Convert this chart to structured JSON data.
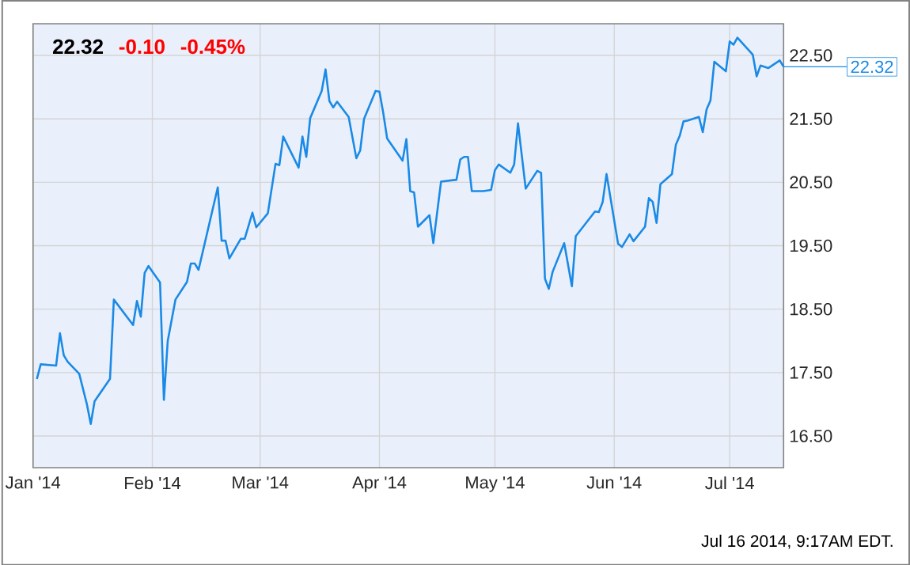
{
  "chart_data": {
    "type": "line",
    "xlim": [
      "2014-01-01",
      "2014-07-15"
    ],
    "xticks": [
      {
        "value": "2014-01-01",
        "label": "Jan '14"
      },
      {
        "value": "2014-02-01",
        "label": "Feb '14"
      },
      {
        "value": "2014-03-01",
        "label": "Mar '14"
      },
      {
        "value": "2014-04-01",
        "label": "Apr '14"
      },
      {
        "value": "2014-05-01",
        "label": "May '14"
      },
      {
        "value": "2014-06-01",
        "label": "Jun '14"
      },
      {
        "value": "2014-07-01",
        "label": "Jul '14"
      }
    ],
    "ylim": [
      16.0,
      23.0
    ],
    "yticks": [
      {
        "value": 16.5,
        "label": "16.50"
      },
      {
        "value": 17.5,
        "label": "17.50"
      },
      {
        "value": 18.5,
        "label": "18.50"
      },
      {
        "value": 19.5,
        "label": "19.50"
      },
      {
        "value": 20.5,
        "label": "20.50"
      },
      {
        "value": 21.5,
        "label": "21.50"
      },
      {
        "value": 22.5,
        "label": "22.50"
      }
    ],
    "grid": true,
    "series": [
      {
        "color": "#1a8ae6",
        "x": [
          "2014-01-02",
          "2014-01-03",
          "2014-01-07",
          "2014-01-08",
          "2014-01-09",
          "2014-01-10",
          "2014-01-13",
          "2014-01-15",
          "2014-01-16",
          "2014-01-17",
          "2014-01-21",
          "2014-01-22",
          "2014-01-27",
          "2014-01-28",
          "2014-01-29",
          "2014-01-30",
          "2014-01-31",
          "2014-02-03",
          "2014-02-04",
          "2014-02-05",
          "2014-02-07",
          "2014-02-10",
          "2014-02-11",
          "2014-02-12",
          "2014-02-13",
          "2014-02-18",
          "2014-02-19",
          "2014-02-20",
          "2014-02-21",
          "2014-02-24",
          "2014-02-25",
          "2014-02-27",
          "2014-02-28",
          "2014-03-03",
          "2014-03-05",
          "2014-03-06",
          "2014-03-07",
          "2014-03-11",
          "2014-03-12",
          "2014-03-13",
          "2014-03-14",
          "2014-03-17",
          "2014-03-18",
          "2014-03-19",
          "2014-03-20",
          "2014-03-21",
          "2014-03-24",
          "2014-03-26",
          "2014-03-27",
          "2014-03-28",
          "2014-03-31",
          "2014-04-01",
          "2014-04-02",
          "2014-04-03",
          "2014-04-07",
          "2014-04-08",
          "2014-04-09",
          "2014-04-10",
          "2014-04-11",
          "2014-04-14",
          "2014-04-15",
          "2014-04-17",
          "2014-04-21",
          "2014-04-22",
          "2014-04-23",
          "2014-04-24",
          "2014-04-25",
          "2014-04-28",
          "2014-04-30",
          "2014-05-01",
          "2014-05-02",
          "2014-05-05",
          "2014-05-06",
          "2014-05-07",
          "2014-05-09",
          "2014-05-12",
          "2014-05-13",
          "2014-05-14",
          "2014-05-15",
          "2014-05-16",
          "2014-05-19",
          "2014-05-21",
          "2014-05-22",
          "2014-05-27",
          "2014-05-28",
          "2014-05-29",
          "2014-05-30",
          "2014-06-02",
          "2014-06-03",
          "2014-06-05",
          "2014-06-06",
          "2014-06-09",
          "2014-06-10",
          "2014-06-11",
          "2014-06-12",
          "2014-06-13",
          "2014-06-16",
          "2014-06-17",
          "2014-06-18",
          "2014-06-19",
          "2014-06-20",
          "2014-06-23",
          "2014-06-24",
          "2014-06-25",
          "2014-06-26",
          "2014-06-27",
          "2014-06-30",
          "2014-07-01",
          "2014-07-02",
          "2014-07-03",
          "2014-07-07",
          "2014-07-08",
          "2014-07-09",
          "2014-07-11",
          "2014-07-14",
          "2014-07-15"
        ],
        "values": [
          17.4,
          17.63,
          17.61,
          18.12,
          17.77,
          17.67,
          17.48,
          17.0,
          16.69,
          17.05,
          17.4,
          18.65,
          18.25,
          18.63,
          18.38,
          19.07,
          19.18,
          18.92,
          17.07,
          18.0,
          18.65,
          18.93,
          19.22,
          19.22,
          19.12,
          20.42,
          19.58,
          19.58,
          19.3,
          19.61,
          19.61,
          20.02,
          19.79,
          20.01,
          20.79,
          20.77,
          21.22,
          20.73,
          21.22,
          20.9,
          21.51,
          21.94,
          22.28,
          21.78,
          21.68,
          21.77,
          21.53,
          20.88,
          21.0,
          21.5,
          21.94,
          21.93,
          21.59,
          21.19,
          20.84,
          21.18,
          20.36,
          20.34,
          19.8,
          19.98,
          19.54,
          20.51,
          20.54,
          20.86,
          20.9,
          20.9,
          20.36,
          20.36,
          20.38,
          20.69,
          20.78,
          20.65,
          20.78,
          21.43,
          20.4,
          20.68,
          20.65,
          18.98,
          18.82,
          19.09,
          19.54,
          18.86,
          19.65,
          20.04,
          20.03,
          20.19,
          20.63,
          19.53,
          19.48,
          19.68,
          19.57,
          19.8,
          20.25,
          20.19,
          19.86,
          20.47,
          20.63,
          21.09,
          21.23,
          21.46,
          21.47,
          21.53,
          21.29,
          21.65,
          21.79,
          22.4,
          22.25,
          22.72,
          22.67,
          22.78,
          22.51,
          22.17,
          22.34,
          22.3,
          22.42,
          22.32
        ]
      }
    ],
    "annotations": [
      "22.32",
      "-0.10",
      "-0.45%",
      "22.32",
      "Jul 16 2014, 9:17AM EDT."
    ]
  }
}
